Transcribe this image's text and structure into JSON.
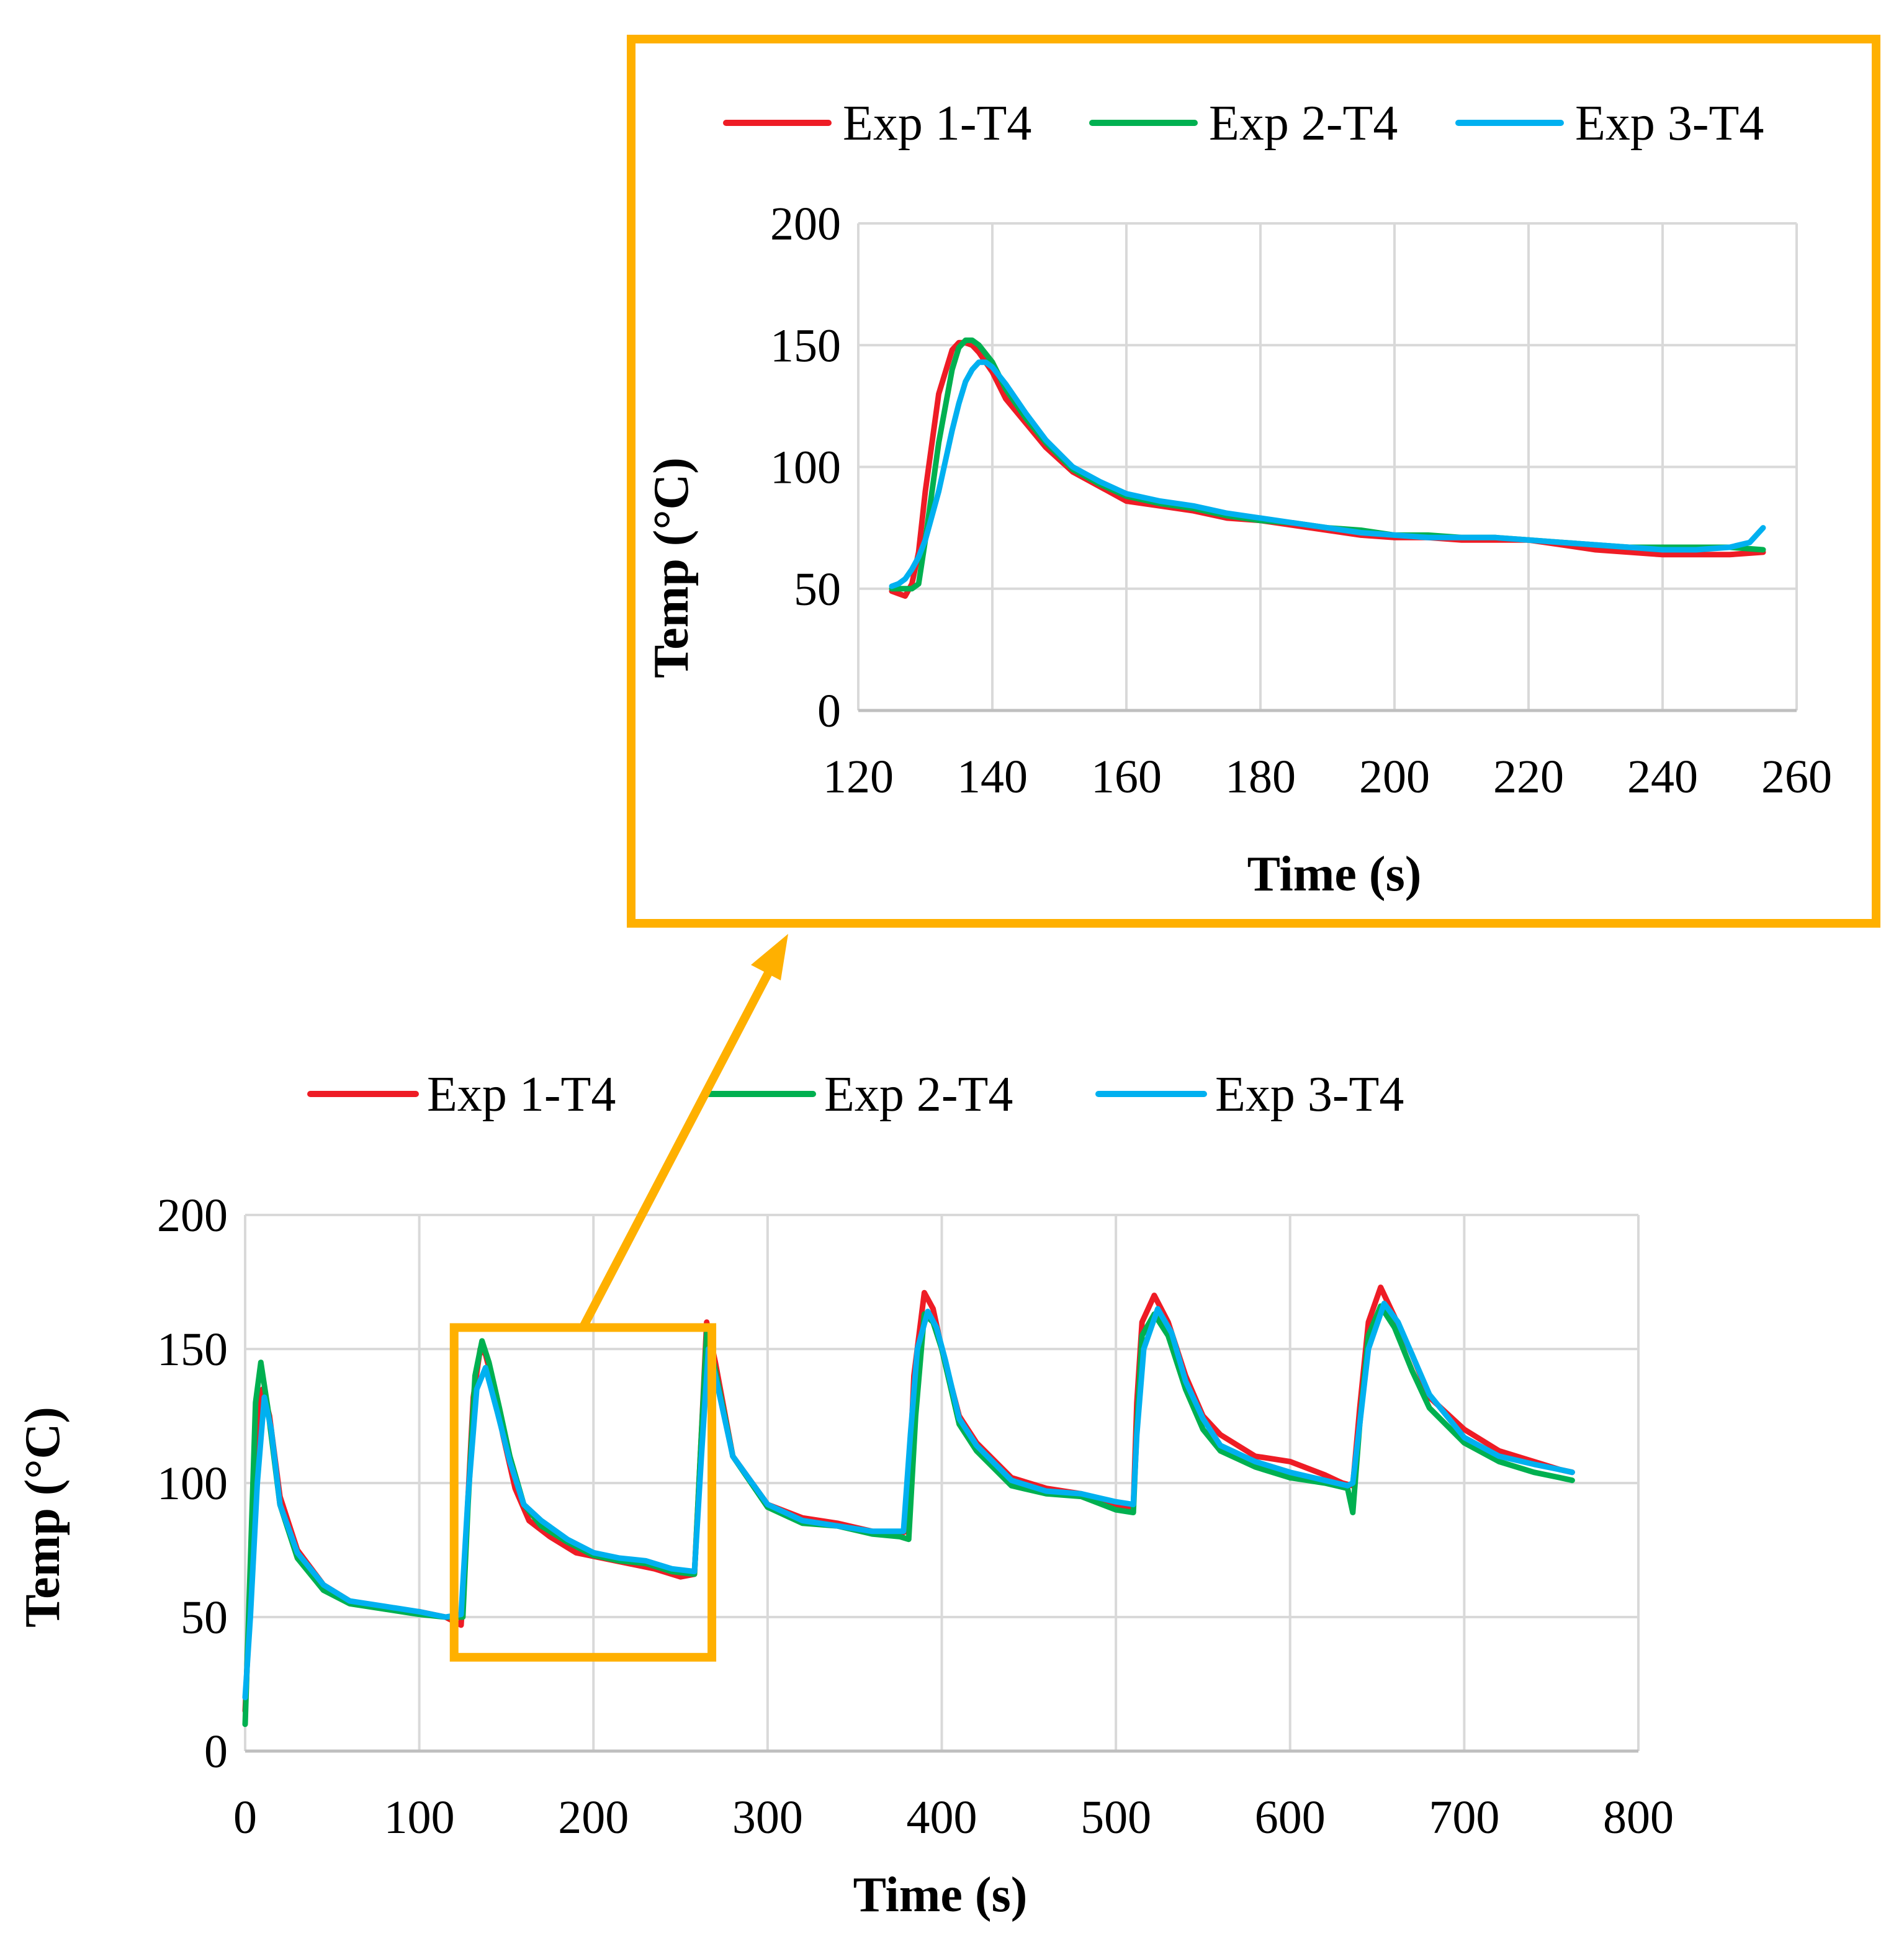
{
  "colors": {
    "exp1": "#ee1c25",
    "exp2": "#00b050",
    "exp3": "#00b0f0",
    "highlight": "#ffb000"
  },
  "chart_data": [
    {
      "id": "main",
      "type": "line",
      "xlabel": "Time (s)",
      "ylabel": "Temp (°C)",
      "xlim": [
        0,
        800
      ],
      "ylim": [
        0,
        200
      ],
      "xticks": [
        "0",
        "100",
        "200",
        "300",
        "400",
        "500",
        "600",
        "700",
        "800"
      ],
      "yticks": [
        "0",
        "50",
        "100",
        "150",
        "200"
      ],
      "grid": true,
      "legend_position": "top",
      "highlight_box": {
        "x": [
          120,
          268
        ],
        "y": [
          35,
          158
        ]
      },
      "series": [
        {
          "name": "Exp 1-T4",
          "color_key": "exp1",
          "x": [
            0,
            3,
            7,
            10,
            14,
            20,
            30,
            45,
            60,
            80,
            100,
            115,
            124,
            127,
            131,
            135,
            138,
            142,
            148,
            155,
            163,
            175,
            190,
            205,
            220,
            235,
            250,
            258,
            262,
            265,
            270,
            280,
            300,
            320,
            340,
            360,
            375,
            380,
            384,
            390,
            395,
            400,
            410,
            420,
            440,
            460,
            480,
            500,
            510,
            512,
            515,
            522,
            530,
            540,
            550,
            560,
            580,
            600,
            620,
            630,
            636,
            640,
            645,
            652,
            660,
            670,
            680,
            700,
            720,
            740,
            755,
            762
          ],
          "y": [
            15,
            60,
            120,
            135,
            125,
            95,
            75,
            62,
            56,
            53,
            52,
            50,
            47,
            82,
            132,
            150,
            148,
            138,
            118,
            98,
            86,
            80,
            74,
            72,
            70,
            68,
            65,
            66,
            118,
            160,
            145,
            110,
            92,
            87,
            85,
            82,
            81,
            82,
            140,
            171,
            165,
            150,
            125,
            115,
            102,
            98,
            96,
            92,
            91,
            130,
            160,
            170,
            160,
            140,
            125,
            118,
            110,
            108,
            103,
            100,
            99,
            128,
            160,
            173,
            162,
            148,
            132,
            120,
            112,
            108,
            105,
            104
          ]
        },
        {
          "name": "Exp 2-T4",
          "color_key": "exp2",
          "x": [
            0,
            3,
            6,
            9,
            13,
            20,
            30,
            45,
            60,
            80,
            100,
            115,
            125,
            128,
            132,
            136,
            140,
            146,
            152,
            160,
            170,
            185,
            200,
            215,
            230,
            245,
            258,
            262,
            265,
            270,
            280,
            300,
            320,
            340,
            360,
            376,
            381,
            385,
            390,
            395,
            400,
            410,
            420,
            440,
            460,
            480,
            500,
            510,
            512,
            515,
            522,
            530,
            540,
            550,
            560,
            580,
            600,
            620,
            633,
            636,
            640,
            645,
            652,
            660,
            670,
            680,
            700,
            720,
            740,
            755,
            762
          ],
          "y": [
            10,
            70,
            130,
            145,
            128,
            92,
            72,
            60,
            55,
            53,
            51,
            50,
            50,
            92,
            140,
            153,
            145,
            128,
            110,
            92,
            84,
            78,
            73,
            71,
            70,
            67,
            66,
            118,
            156,
            142,
            110,
            91,
            85,
            84,
            81,
            80,
            79,
            125,
            163,
            160,
            150,
            122,
            112,
            99,
            96,
            95,
            90,
            89,
            120,
            155,
            163,
            155,
            135,
            120,
            112,
            106,
            102,
            100,
            98,
            89,
            122,
            155,
            166,
            158,
            142,
            128,
            115,
            108,
            104,
            102,
            101
          ]
        },
        {
          "name": "Exp 3-T4",
          "color_key": "exp3",
          "x": [
            0,
            3,
            7,
            11,
            15,
            20,
            30,
            45,
            60,
            80,
            100,
            115,
            124,
            128,
            133,
            138,
            145,
            152,
            160,
            170,
            185,
            200,
            215,
            230,
            245,
            258,
            262,
            266,
            270,
            280,
            300,
            320,
            340,
            360,
            378,
            382,
            386,
            392,
            397,
            402,
            410,
            420,
            440,
            460,
            480,
            500,
            510,
            512,
            516,
            524,
            532,
            540,
            550,
            560,
            580,
            600,
            620,
            633,
            636,
            640,
            645,
            654,
            662,
            670,
            680,
            700,
            720,
            740,
            755,
            762
          ],
          "y": [
            20,
            50,
            100,
            132,
            120,
            92,
            74,
            62,
            56,
            54,
            52,
            50,
            51,
            95,
            135,
            143,
            126,
            108,
            92,
            86,
            79,
            74,
            72,
            71,
            68,
            67,
            110,
            150,
            140,
            110,
            92,
            86,
            84,
            82,
            82,
            118,
            150,
            164,
            158,
            146,
            124,
            114,
            101,
            97,
            96,
            93,
            92,
            118,
            150,
            165,
            156,
            138,
            124,
            114,
            108,
            104,
            101,
            99,
            100,
            122,
            150,
            167,
            160,
            148,
            133,
            117,
            110,
            107,
            105,
            104
          ]
        }
      ]
    },
    {
      "id": "inset",
      "type": "line",
      "xlabel": "Time (s)",
      "ylabel": "Temp (°C)",
      "xlim": [
        120,
        260
      ],
      "ylim": [
        0,
        200
      ],
      "xticks": [
        "120",
        "140",
        "160",
        "180",
        "200",
        "220",
        "240",
        "260"
      ],
      "yticks": [
        "0",
        "50",
        "100",
        "150",
        "200"
      ],
      "grid": true,
      "legend_position": "top",
      "series": [
        {
          "name": "Exp 1-T4",
          "color_key": "exp1",
          "x": [
            125,
            126,
            127,
            128,
            129,
            130,
            132,
            134,
            135,
            136,
            137,
            138,
            140,
            142,
            145,
            148,
            152,
            156,
            160,
            165,
            170,
            175,
            180,
            185,
            190,
            195,
            200,
            205,
            210,
            215,
            220,
            225,
            230,
            235,
            240,
            245,
            250,
            255
          ],
          "y": [
            49,
            48,
            47,
            52,
            65,
            90,
            130,
            148,
            151,
            151,
            150,
            147,
            139,
            128,
            118,
            108,
            98,
            92,
            86,
            84,
            82,
            79,
            78,
            76,
            74,
            72,
            71,
            71,
            70,
            70,
            70,
            68,
            66,
            65,
            64,
            64,
            64,
            65
          ]
        },
        {
          "name": "Exp 2-T4",
          "color_key": "exp2",
          "x": [
            125,
            126,
            127,
            128,
            129,
            130,
            132,
            134,
            135,
            136,
            137,
            138,
            140,
            142,
            145,
            148,
            152,
            156,
            160,
            165,
            170,
            175,
            180,
            185,
            190,
            195,
            200,
            205,
            210,
            215,
            220,
            225,
            230,
            235,
            240,
            245,
            250,
            255
          ],
          "y": [
            50,
            50,
            50,
            50,
            52,
            70,
            110,
            140,
            149,
            152,
            152,
            150,
            143,
            132,
            120,
            110,
            99,
            93,
            88,
            85,
            83,
            80,
            78,
            77,
            75,
            74,
            72,
            72,
            71,
            71,
            70,
            69,
            68,
            67,
            67,
            67,
            67,
            66
          ]
        },
        {
          "name": "Exp 3-T4",
          "color_key": "exp3",
          "x": [
            125,
            126,
            127,
            128,
            129,
            130,
            132,
            134,
            135,
            136,
            137,
            138,
            139,
            140,
            142,
            145,
            148,
            152,
            156,
            160,
            165,
            170,
            175,
            180,
            185,
            190,
            195,
            200,
            205,
            210,
            215,
            220,
            225,
            230,
            235,
            240,
            245,
            250,
            253,
            255
          ],
          "y": [
            51,
            52,
            54,
            58,
            63,
            70,
            90,
            115,
            126,
            135,
            140,
            143,
            143,
            141,
            134,
            122,
            111,
            100,
            94,
            89,
            86,
            84,
            81,
            79,
            77,
            75,
            73,
            72,
            71,
            71,
            71,
            70,
            69,
            68,
            67,
            66,
            66,
            67,
            69,
            75
          ]
        }
      ]
    }
  ]
}
